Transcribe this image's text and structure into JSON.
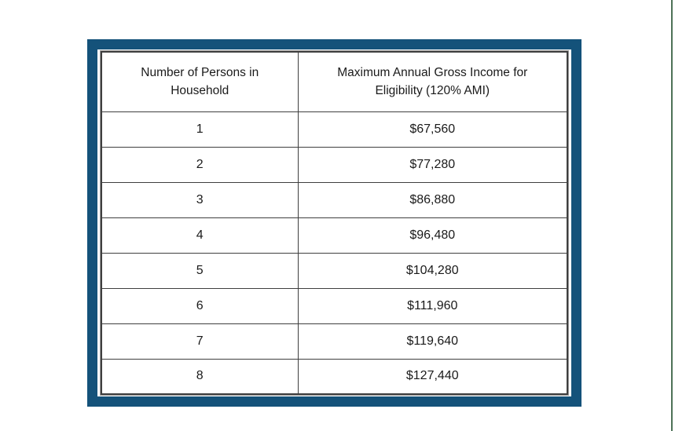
{
  "page": {
    "background_color": "#ffffff"
  },
  "decorations": {
    "frame_border_color": "#14527a",
    "table_border_color": "#3f3f3f",
    "right_edge_line_color": "#4d7257",
    "text_color": "#1a1a1a"
  },
  "table": {
    "columns": [
      "Number of Persons in\nHousehold",
      "Maximum Annual Gross Income for\nEligibility (120% AMI)"
    ],
    "rows": [
      {
        "persons": "1",
        "income": "$67,560"
      },
      {
        "persons": "2",
        "income": "$77,280"
      },
      {
        "persons": "3",
        "income": "$86,880"
      },
      {
        "persons": "4",
        "income": "$96,480"
      },
      {
        "persons": "5",
        "income": "$104,280"
      },
      {
        "persons": "6",
        "income": "$111,960"
      },
      {
        "persons": "7",
        "income": "$119,640"
      },
      {
        "persons": "8",
        "income": "$127,440"
      }
    ]
  }
}
